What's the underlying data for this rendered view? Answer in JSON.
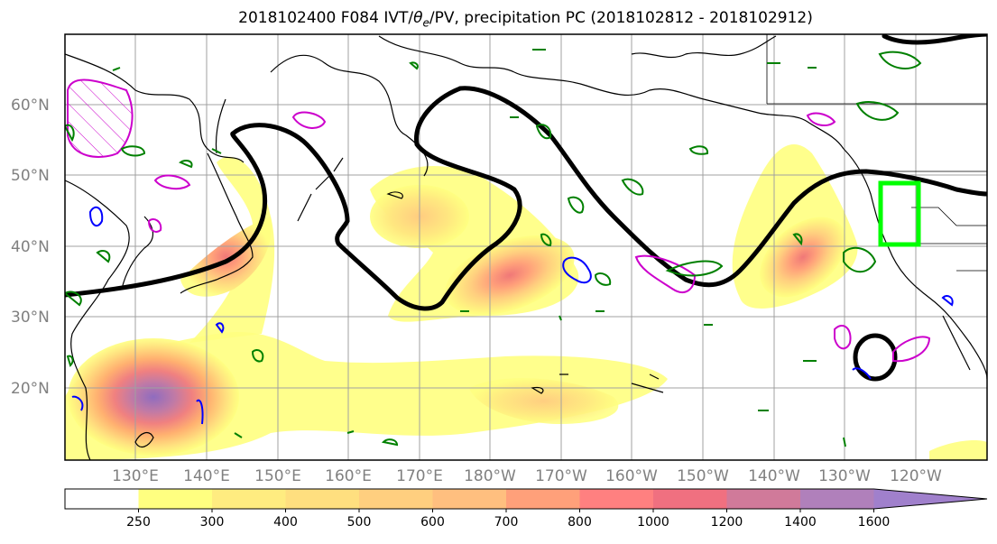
{
  "title": {
    "prefix": "2018102400 F084 IVT/",
    "theta_symbol": "θ",
    "theta_sub": "e",
    "suffix": "/PV, precipitation PC (2018102812 - 2018102912)"
  },
  "map": {
    "lat_labels": [
      "60°N",
      "50°N",
      "40°N",
      "30°N",
      "20°N"
    ],
    "lon_labels": [
      "130°E",
      "140°E",
      "150°E",
      "160°E",
      "170°E",
      "180°W",
      "170°W",
      "160°W",
      "150°W",
      "140°W",
      "130°W",
      "120°W"
    ],
    "layers": {
      "ivt_shading": "yellow-orange-purple",
      "pv_contour_color": "#000000",
      "theta_e_positive_color": "#cc00cc",
      "theta_e_negative_color": "#0000ff",
      "precip_contour_color": "#008000",
      "target_box_color": "#00ff00"
    }
  },
  "colorbar": {
    "levels": [
      "250",
      "300",
      "400",
      "500",
      "600",
      "700",
      "800",
      "1000",
      "1200",
      "1400",
      "1600"
    ],
    "colors": [
      "#ffffff",
      "#ffff80",
      "#ffec80",
      "#ffdf7f",
      "#ffcf7f",
      "#ffbf7f",
      "#ffa07a",
      "#ff8080",
      "#f07080",
      "#d07a9a",
      "#b080bb",
      "#a080cc"
    ]
  }
}
